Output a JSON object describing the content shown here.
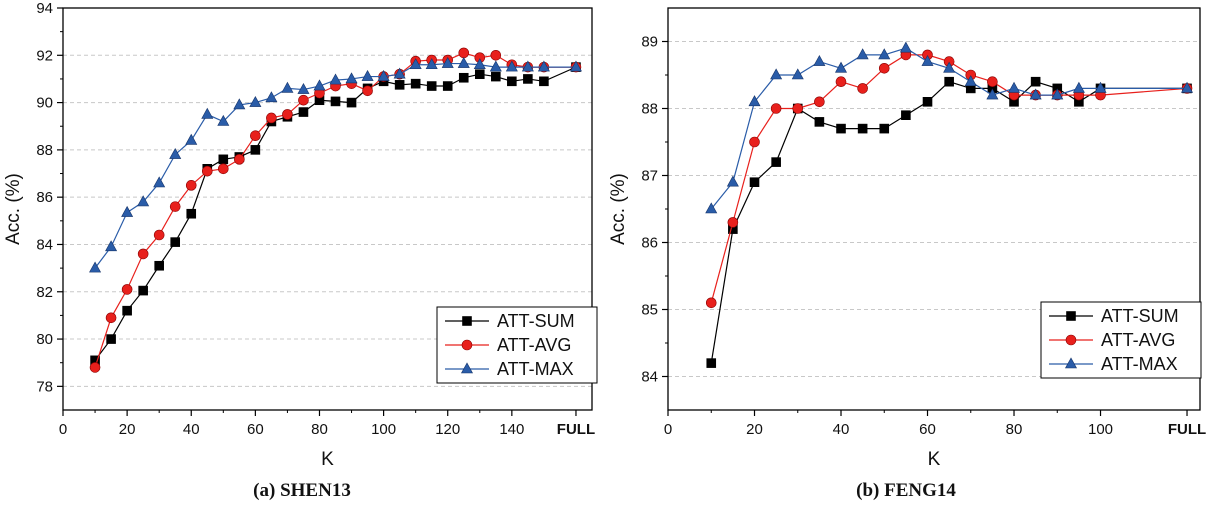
{
  "chart_data": [
    {
      "type": "line",
      "caption": "(a) SHEN13",
      "xlabel": "K",
      "ylabel": "Acc. (%)",
      "xlim": [
        0,
        165
      ],
      "ylim": [
        77,
        94
      ],
      "x_ticks": [
        0,
        20,
        40,
        60,
        80,
        100,
        120,
        140
      ],
      "x_ticks_extra": [
        {
          "value": 160,
          "label": "FULL"
        }
      ],
      "y_ticks": [
        78,
        80,
        82,
        84,
        86,
        88,
        90,
        92,
        94
      ],
      "grid": true,
      "legend_position": "bottom-right",
      "x": [
        10,
        15,
        20,
        25,
        30,
        35,
        40,
        45,
        50,
        55,
        60,
        65,
        70,
        75,
        80,
        85,
        90,
        95,
        100,
        105,
        110,
        115,
        120,
        125,
        130,
        135,
        140,
        145,
        150,
        160
      ],
      "series": [
        {
          "name": "ATT-SUM",
          "color": "#000000",
          "marker": "square",
          "values": [
            79.1,
            80.0,
            81.2,
            82.05,
            83.1,
            84.1,
            85.3,
            87.2,
            87.6,
            87.7,
            88.0,
            89.2,
            89.4,
            89.6,
            90.1,
            90.05,
            90.0,
            90.6,
            90.9,
            90.75,
            90.8,
            90.7,
            90.7,
            91.05,
            91.2,
            91.1,
            90.9,
            91.0,
            90.9,
            91.5
          ]
        },
        {
          "name": "ATT-AVG",
          "color": "#e8201c",
          "marker": "circle",
          "values": [
            78.8,
            80.9,
            82.1,
            83.6,
            84.4,
            85.6,
            86.5,
            87.1,
            87.2,
            87.6,
            88.6,
            89.35,
            89.5,
            90.1,
            90.4,
            90.7,
            90.8,
            90.5,
            91.1,
            91.2,
            91.75,
            91.8,
            91.8,
            92.1,
            91.9,
            92.0,
            91.6,
            91.5,
            91.5,
            91.5
          ]
        },
        {
          "name": "ATT-MAX",
          "color": "#2a5ca8",
          "marker": "triangle",
          "values": [
            83.0,
            83.9,
            85.35,
            85.8,
            86.6,
            87.8,
            88.4,
            89.5,
            89.2,
            89.9,
            90.0,
            90.2,
            90.6,
            90.55,
            90.7,
            90.95,
            91.0,
            91.1,
            91.1,
            91.2,
            91.6,
            91.6,
            91.65,
            91.65,
            91.6,
            91.5,
            91.5,
            91.5,
            91.5,
            91.5
          ]
        }
      ]
    },
    {
      "type": "line",
      "caption": "(b) FENG14",
      "xlabel": "K",
      "ylabel": "Acc. (%)",
      "xlim": [
        0,
        123
      ],
      "ylim": [
        83.5,
        89.5
      ],
      "x_ticks": [
        0,
        20,
        40,
        60,
        80,
        100
      ],
      "x_ticks_extra": [
        {
          "value": 120,
          "label": "FULL"
        }
      ],
      "y_ticks": [
        84,
        85,
        86,
        87,
        88,
        89
      ],
      "grid": true,
      "legend_position": "bottom-right",
      "x": [
        10,
        15,
        20,
        25,
        30,
        35,
        40,
        45,
        50,
        55,
        60,
        65,
        70,
        75,
        80,
        85,
        90,
        95,
        100,
        120
      ],
      "series": [
        {
          "name": "ATT-SUM",
          "color": "#000000",
          "marker": "square",
          "values": [
            84.2,
            86.2,
            86.9,
            87.2,
            88.0,
            87.8,
            87.7,
            87.7,
            87.7,
            87.9,
            88.1,
            88.4,
            88.3,
            88.3,
            88.1,
            88.4,
            88.3,
            88.1,
            88.3,
            88.3
          ]
        },
        {
          "name": "ATT-AVG",
          "color": "#e8201c",
          "marker": "circle",
          "values": [
            85.1,
            86.3,
            87.5,
            88.0,
            88.0,
            88.1,
            88.4,
            88.3,
            88.6,
            88.8,
            88.8,
            88.7,
            88.5,
            88.4,
            88.2,
            88.2,
            88.2,
            88.2,
            88.2,
            88.3
          ]
        },
        {
          "name": "ATT-MAX",
          "color": "#2a5ca8",
          "marker": "triangle",
          "values": [
            86.5,
            86.9,
            88.1,
            88.5,
            88.5,
            88.7,
            88.6,
            88.8,
            88.8,
            88.9,
            88.7,
            88.6,
            88.4,
            88.2,
            88.3,
            88.2,
            88.2,
            88.3,
            88.3,
            88.3
          ]
        }
      ]
    }
  ]
}
